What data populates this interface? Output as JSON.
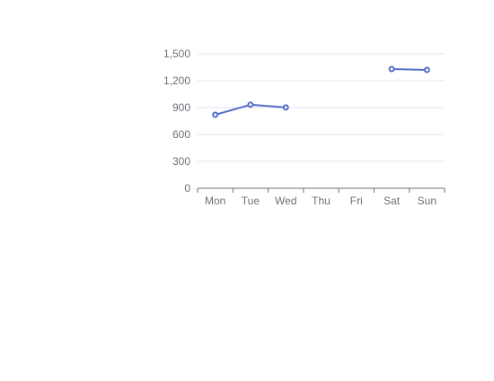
{
  "chart_data": {
    "type": "line",
    "categories": [
      "Mon",
      "Tue",
      "Wed",
      "Thu",
      "Fri",
      "Sat",
      "Sun"
    ],
    "series": [
      {
        "values": [
          820,
          932,
          901,
          null,
          null,
          1330,
          1320
        ],
        "color": "#5470c6"
      }
    ],
    "ylim": [
      0,
      1500
    ],
    "yticks": [
      "0",
      "300",
      "600",
      "900",
      "1,200",
      "1,500"
    ],
    "ytick_values": [
      0,
      300,
      600,
      900,
      1200,
      1500
    ],
    "grid": true,
    "connect_nulls": false
  }
}
